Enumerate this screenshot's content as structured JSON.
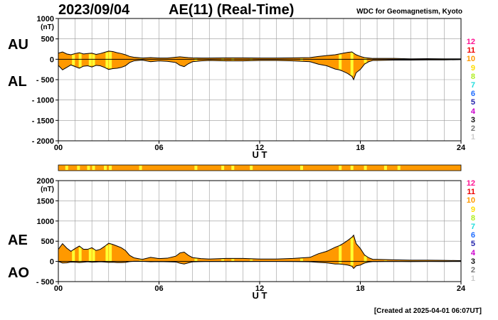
{
  "header": {
    "date": "2023/09/04",
    "title": "AE(11) (Real-Time)",
    "organization": "WDC for Geomagnetism, Kyoto"
  },
  "footer": {
    "created": "[Created at 2025-04-01 06:07UT]"
  },
  "legend": {
    "items": [
      {
        "label": "12",
        "color": "#ff1493"
      },
      {
        "label": "11",
        "color": "#ee0000"
      },
      {
        "label": "10",
        "color": "#ff9900"
      },
      {
        "label": "9",
        "color": "#ffdd00"
      },
      {
        "label": "8",
        "color": "#b0ee22"
      },
      {
        "label": "7",
        "color": "#22dddd"
      },
      {
        "label": "6",
        "color": "#1e6cff"
      },
      {
        "label": "5",
        "color": "#2222aa"
      },
      {
        "label": "4",
        "color": "#cc00cc"
      },
      {
        "label": "3",
        "color": "#111111"
      },
      {
        "label": "2",
        "color": "#777777"
      },
      {
        "label": "1",
        "color": "#cccccc"
      }
    ]
  },
  "colors": {
    "fill": "#ff9900",
    "highlight": "#ffff33",
    "grid": "#999999"
  },
  "chart_data": [
    {
      "type": "area",
      "name": "AU/AL",
      "labels_left": [
        "AU",
        "AL"
      ],
      "unit": "(nT)",
      "ylim": [
        -2000,
        1000
      ],
      "yticks": [
        1000,
        500,
        0,
        -500,
        -1000,
        -1500,
        -2000
      ],
      "ytick_labels": [
        "1000",
        "500",
        "0",
        "- 500",
        "- 1000",
        "- 1500",
        "- 2000"
      ],
      "xlim": [
        0,
        24
      ],
      "xticks": [
        0,
        6,
        12,
        18,
        24
      ],
      "xtick_labels": [
        "00",
        "06",
        "12",
        "18",
        "24"
      ],
      "xlabel": "U T",
      "x": [
        0,
        0.25,
        0.5,
        0.75,
        1,
        1.25,
        1.5,
        1.75,
        2,
        2.25,
        2.5,
        2.75,
        3,
        3.25,
        3.5,
        3.75,
        4,
        4.25,
        4.5,
        4.75,
        5,
        5.5,
        6,
        6.5,
        7,
        7.25,
        7.5,
        7.75,
        8,
        8.5,
        9,
        10,
        11,
        12,
        13,
        14,
        15,
        15.5,
        16,
        16.5,
        16.75,
        17,
        17.25,
        17.5,
        17.6,
        17.75,
        18,
        18.25,
        18.5,
        18.75,
        19,
        20,
        21,
        22,
        23,
        24
      ],
      "series": [
        {
          "name": "AU",
          "values": [
            150,
            180,
            130,
            110,
            140,
            160,
            130,
            140,
            150,
            120,
            140,
            170,
            200,
            190,
            160,
            140,
            110,
            70,
            50,
            40,
            30,
            40,
            30,
            30,
            50,
            60,
            50,
            40,
            35,
            30,
            30,
            35,
            35,
            30,
            30,
            35,
            40,
            70,
            90,
            110,
            130,
            150,
            170,
            180,
            150,
            110,
            70,
            40,
            30,
            20,
            20,
            20,
            10,
            15,
            10,
            10
          ]
        },
        {
          "name": "AL",
          "values": [
            -150,
            -260,
            -200,
            -140,
            -180,
            -220,
            -170,
            -160,
            -190,
            -150,
            -160,
            -200,
            -250,
            -230,
            -220,
            -200,
            -160,
            -80,
            -40,
            -30,
            -20,
            -60,
            -40,
            -50,
            -80,
            -150,
            -180,
            -110,
            -60,
            -40,
            -30,
            -40,
            -40,
            -30,
            -30,
            -40,
            -60,
            -120,
            -160,
            -240,
            -260,
            -300,
            -350,
            -420,
            -500,
            -330,
            -250,
            -120,
            -60,
            -30,
            -30,
            -20,
            -20,
            -15,
            -15,
            -10
          ]
        }
      ],
      "highlight_hours": [
        0.9,
        1.3,
        1.9,
        2.1,
        2.9,
        3.1,
        4.9,
        8.2,
        9.8,
        10.4,
        11.5,
        14.5,
        16.8,
        17.5,
        18.3,
        19.5,
        20.3
      ]
    },
    {
      "type": "area",
      "name": "AE/AO",
      "labels_left": [
        "AE",
        "AO"
      ],
      "unit": "(nT)",
      "ylim": [
        -500,
        2000
      ],
      "yticks": [
        2000,
        1500,
        1000,
        500,
        0,
        -500
      ],
      "ytick_labels": [
        "2000",
        "1500",
        "1000",
        "500",
        "0",
        "- 500"
      ],
      "xlim": [
        0,
        24
      ],
      "xticks": [
        0,
        6,
        12,
        18,
        24
      ],
      "xtick_labels": [
        "00",
        "06",
        "12",
        "18",
        "24"
      ],
      "xlabel": "U T",
      "x": [
        0,
        0.25,
        0.5,
        0.75,
        1,
        1.25,
        1.5,
        1.75,
        2,
        2.25,
        2.5,
        2.75,
        3,
        3.25,
        3.5,
        3.75,
        4,
        4.25,
        4.5,
        4.75,
        5,
        5.5,
        6,
        6.5,
        7,
        7.25,
        7.5,
        7.75,
        8,
        8.5,
        9,
        10,
        11,
        12,
        13,
        14,
        15,
        15.5,
        16,
        16.5,
        16.75,
        17,
        17.25,
        17.5,
        17.6,
        17.75,
        18,
        18.25,
        18.5,
        18.75,
        19,
        20,
        21,
        22,
        23,
        24
      ],
      "series": [
        {
          "name": "AE",
          "values": [
            300,
            440,
            330,
            250,
            320,
            380,
            300,
            300,
            340,
            270,
            300,
            370,
            450,
            420,
            380,
            340,
            270,
            150,
            90,
            70,
            50,
            100,
            70,
            80,
            130,
            210,
            230,
            150,
            95,
            70,
            60,
            75,
            75,
            60,
            60,
            75,
            100,
            190,
            250,
            350,
            390,
            450,
            520,
            600,
            650,
            440,
            320,
            160,
            90,
            50,
            50,
            40,
            30,
            30,
            25,
            20
          ]
        },
        {
          "name": "AO",
          "values": [
            0,
            -40,
            -35,
            -15,
            -20,
            -30,
            -20,
            -10,
            -20,
            -15,
            -10,
            -15,
            -25,
            -20,
            -30,
            -30,
            -25,
            -5,
            5,
            5,
            5,
            -10,
            -5,
            -10,
            -15,
            -45,
            -65,
            -35,
            -12,
            -5,
            0,
            -2,
            -2,
            0,
            0,
            -2,
            -10,
            -25,
            -35,
            -65,
            -65,
            -75,
            -90,
            -120,
            -175,
            -110,
            -90,
            -40,
            -15,
            -5,
            -5,
            0,
            -5,
            0,
            -2,
            0
          ]
        }
      ],
      "highlight_hours": [
        0.9,
        1.3,
        1.9,
        2.1,
        2.9,
        3.1,
        4.9,
        8.2,
        9.8,
        10.4,
        11.5,
        14.5,
        16.8,
        17.5,
        18.3,
        19.5,
        20.3
      ]
    }
  ],
  "activity_bar": {
    "highlight_hours": [
      0.5,
      1.2,
      1.8,
      2.1,
      2.8,
      3.1,
      4.9,
      8.2,
      9.8,
      10.4,
      11.5,
      14.5,
      16.8,
      17.5,
      18.3,
      19.5,
      20.3
    ]
  }
}
